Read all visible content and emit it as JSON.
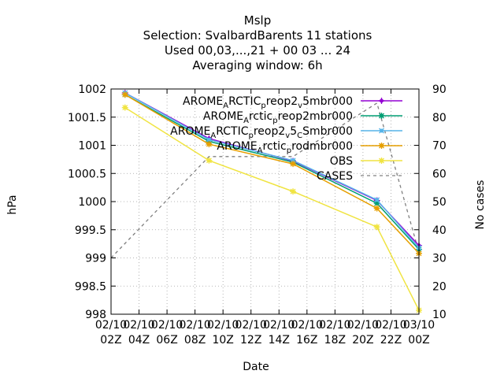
{
  "chart_data": {
    "type": "line",
    "title_lines": [
      "Mslp",
      "Selection: SvalbardBarents      11 stations",
      "Used  00,03,...,21  + 00 03 ... 24",
      "Averaging window:  6h"
    ],
    "xlabel": "Date",
    "ylabel": "hPa",
    "y2label": "No cases",
    "x_ticks": [
      [
        "02/10",
        "02Z"
      ],
      [
        "02/10",
        "04Z"
      ],
      [
        "02/10",
        "06Z"
      ],
      [
        "02/10",
        "08Z"
      ],
      [
        "02/10",
        "10Z"
      ],
      [
        "02/10",
        "12Z"
      ],
      [
        "02/10",
        "14Z"
      ],
      [
        "02/10",
        "16Z"
      ],
      [
        "02/10",
        "18Z"
      ],
      [
        "02/10",
        "20Z"
      ],
      [
        "02/10",
        "22Z"
      ],
      [
        "03/10",
        "00Z"
      ]
    ],
    "xlim": [
      2,
      24
    ],
    "ylim": [
      998,
      1002
    ],
    "y_ticks": [
      998,
      998.5,
      999,
      999.5,
      1000,
      1000.5,
      1001,
      1001.5,
      1002
    ],
    "y2lim": [
      10,
      90
    ],
    "y2_ticks": [
      10,
      20,
      30,
      40,
      50,
      60,
      70,
      80,
      90
    ],
    "grid": true,
    "legend_position": "top-right",
    "x": [
      3,
      9,
      15,
      21,
      24
    ],
    "series": [
      {
        "name": "AROME_ARCTIC_preop2_v5mbr000",
        "color": "#9400d3",
        "marker": "plus",
        "axis": "y",
        "values": [
          1001.93,
          1001.12,
          1000.72,
          1000.02,
          999.22
        ]
      },
      {
        "name": "AROME_Arctic_preop2mbr000",
        "color": "#009e73",
        "marker": "star",
        "axis": "y",
        "values": [
          1001.9,
          1001.07,
          1000.7,
          999.97,
          999.15
        ]
      },
      {
        "name": "AROME_ARCTIC_preop2_v5_CSmbr000",
        "color": "#56b4e9",
        "marker": "cross",
        "axis": "y",
        "values": [
          1001.93,
          1001.1,
          1000.73,
          1000.03,
          999.18
        ]
      },
      {
        "name": "AROME_Arctic_prodmbr000",
        "color": "#e69f00",
        "marker": "star",
        "axis": "y",
        "values": [
          1001.9,
          1001.02,
          1000.67,
          999.88,
          999.08
        ]
      },
      {
        "name": "OBS",
        "color": "#f0e442",
        "marker": "star",
        "axis": "y",
        "values": [
          1001.67,
          1000.73,
          1000.18,
          999.55,
          998.07
        ]
      },
      {
        "name": "CASES",
        "color": "#808080",
        "marker": "none",
        "axis": "y2",
        "dashed": true,
        "x": [
          2,
          9,
          15,
          21,
          24
        ],
        "values": [
          30,
          66,
          66,
          85,
          32
        ]
      }
    ],
    "legend_labels": [
      {
        "main": "AROME",
        "parts": [
          [
            "A",
            "RCTIC"
          ],
          [
            "p",
            "reop2"
          ],
          [
            "v",
            "5mbr000"
          ]
        ]
      },
      {
        "main": "AROME",
        "parts": [
          [
            "A",
            "rctic"
          ],
          [
            "p",
            "reop2mbr000"
          ]
        ]
      },
      {
        "main": "AROME",
        "parts": [
          [
            "A",
            "RCTIC"
          ],
          [
            "p",
            "reop2"
          ],
          [
            "v",
            "5"
          ],
          [
            "C",
            "Smbr000"
          ]
        ]
      },
      {
        "main": "AROME",
        "parts": [
          [
            "A",
            "rctic"
          ],
          [
            "p",
            "rodmbr000"
          ]
        ]
      },
      {
        "main": "OBS",
        "parts": []
      },
      {
        "main": "CASES",
        "parts": []
      }
    ]
  }
}
